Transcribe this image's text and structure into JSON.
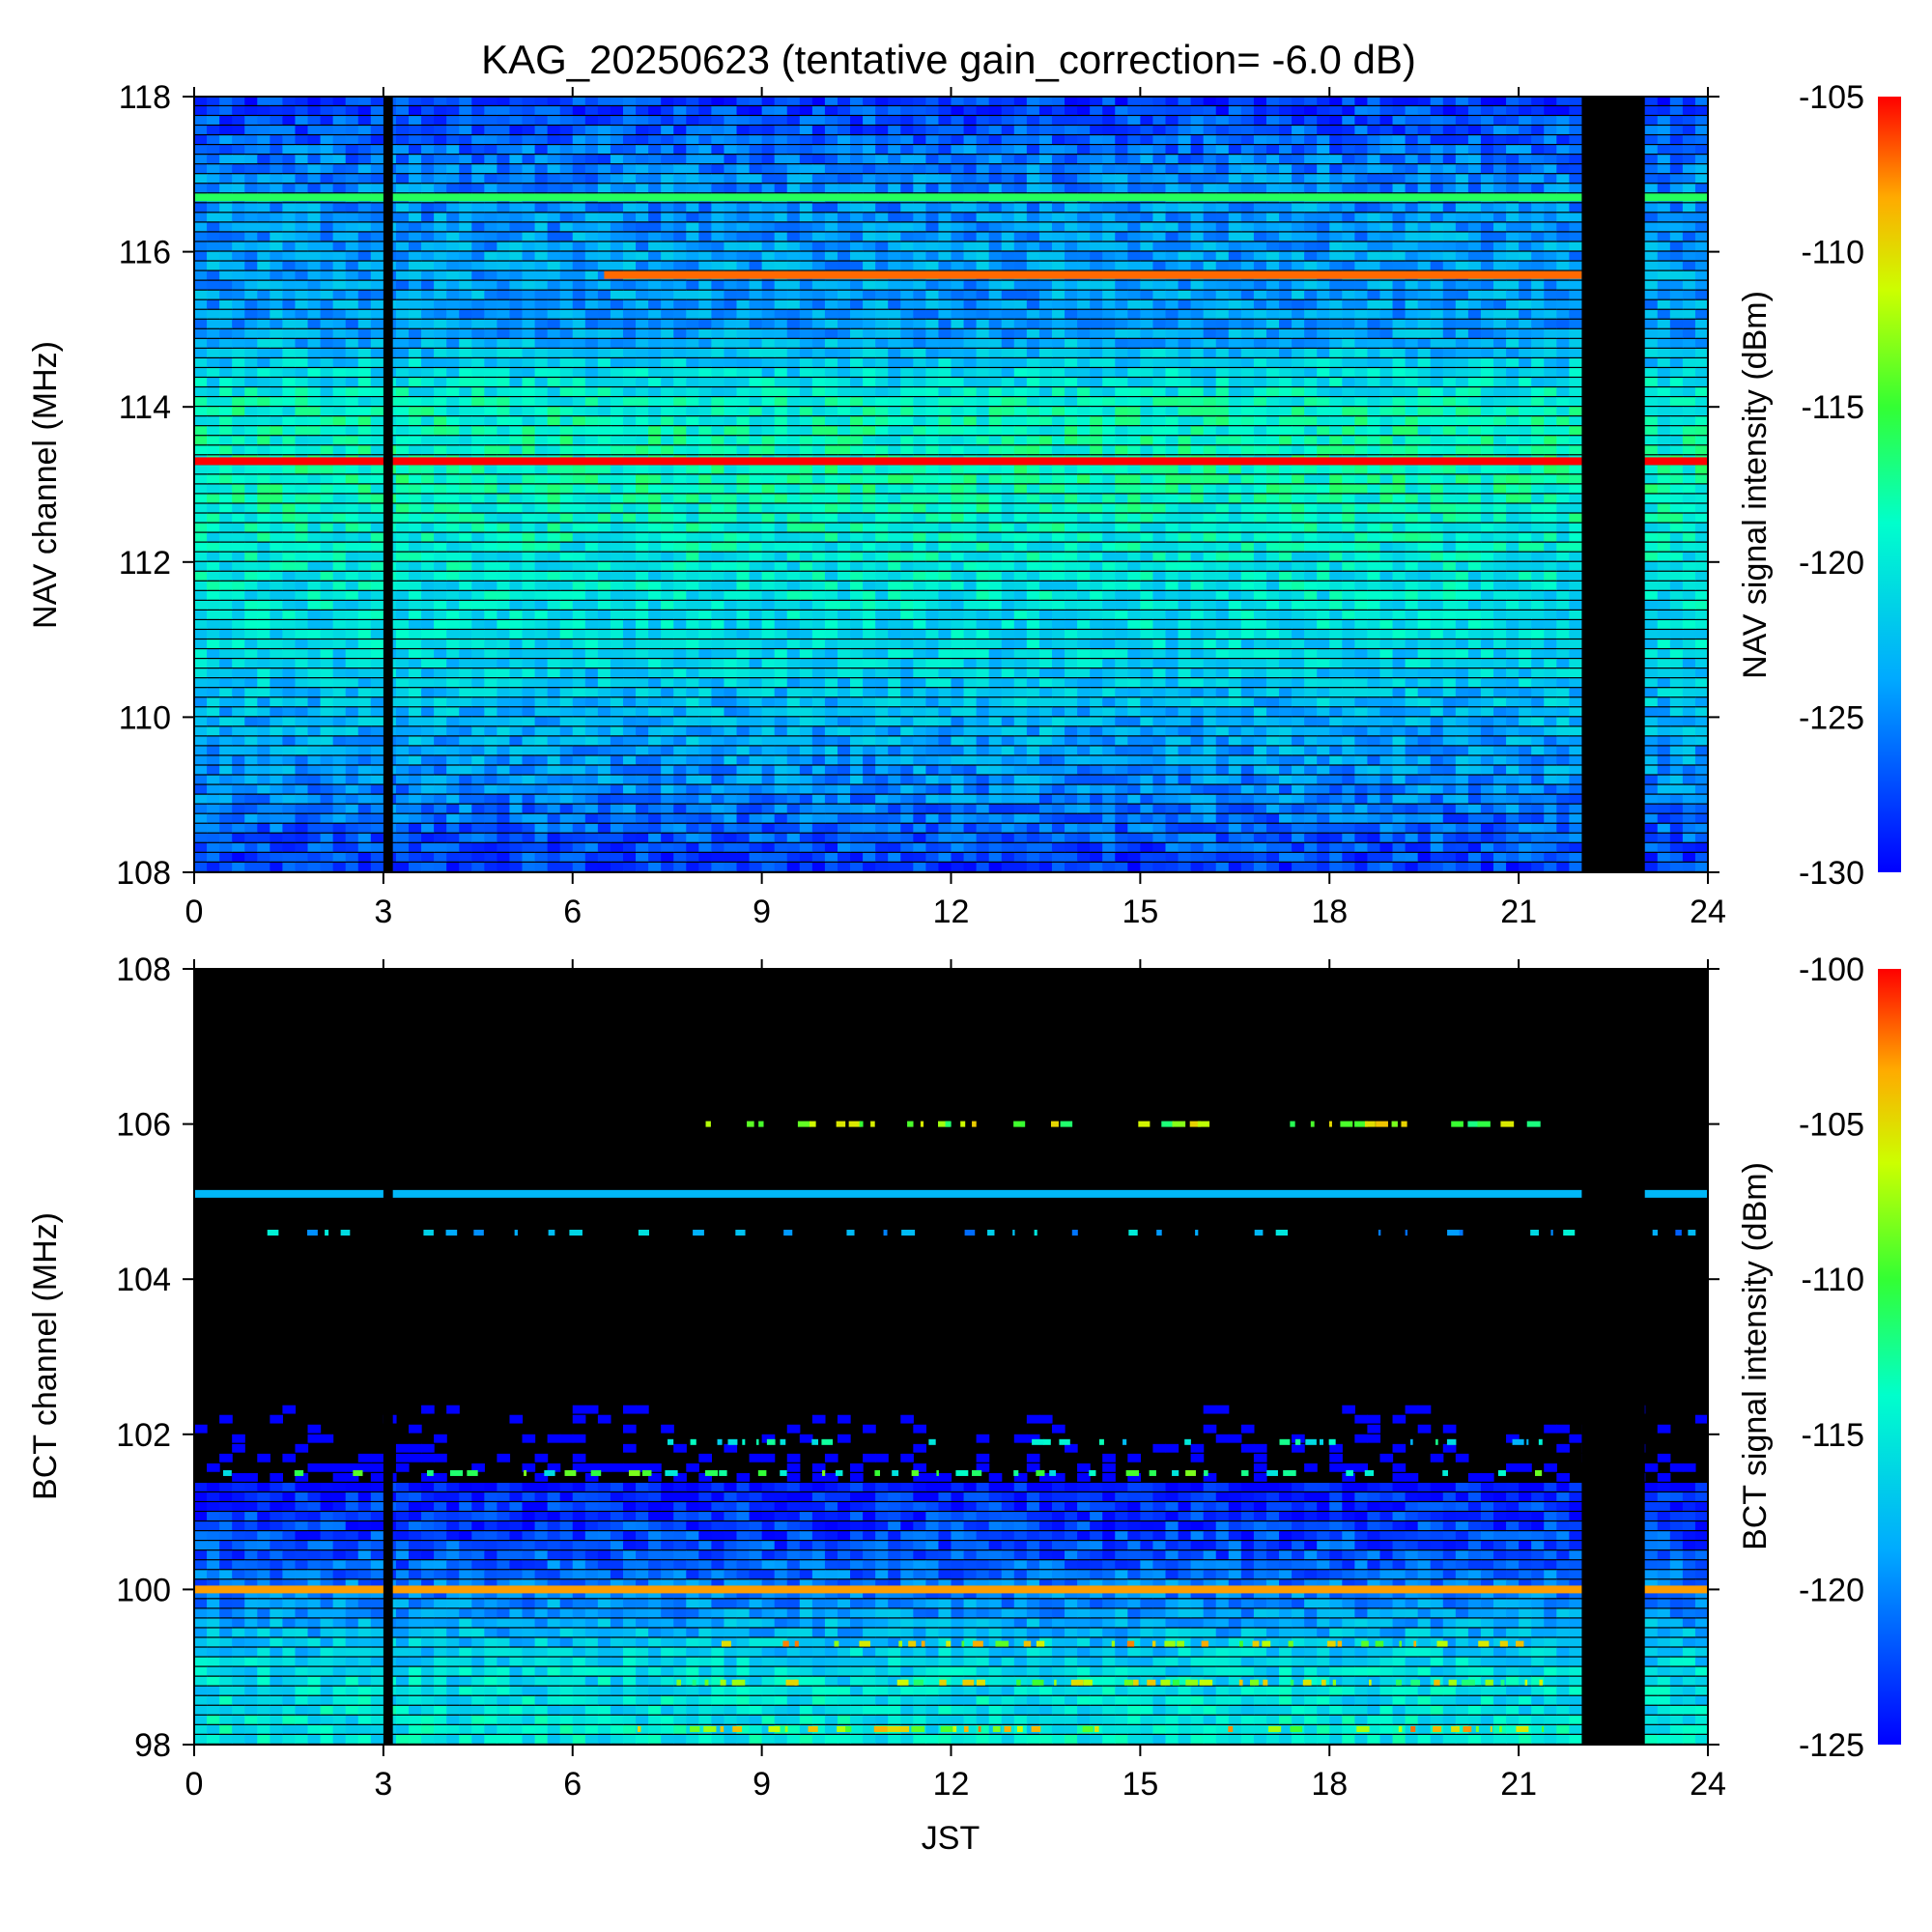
{
  "title": "KAG_20250623 (tentative gain_correction= -6.0 dB)",
  "x_label": "JST",
  "chart_data": [
    {
      "type": "heatmap",
      "name": "NAV",
      "ylabel": "NAV channel (MHz)",
      "colorbar_label": "NAV signal intensity (dBm)",
      "x_ticks": [
        "0",
        "3",
        "6",
        "9",
        "12",
        "15",
        "18",
        "21",
        "24"
      ],
      "x_tick_values": [
        0,
        3,
        6,
        9,
        12,
        15,
        18,
        21,
        24
      ],
      "xlim": [
        0,
        24
      ],
      "y_ticks": [
        "108",
        "110",
        "112",
        "114",
        "116",
        "118"
      ],
      "y_tick_values": [
        108,
        110,
        112,
        114,
        116,
        118
      ],
      "ylim": [
        108,
        118
      ],
      "colorbar_ticks": [
        "-130",
        "-125",
        "-120",
        "-115",
        "-110",
        "-105"
      ],
      "colorbar_tick_values": [
        -130,
        -125,
        -120,
        -115,
        -110,
        -105
      ],
      "clim": [
        -130,
        -105
      ],
      "no_data_intervals": [
        [
          3.0,
          3.15
        ],
        [
          22.0,
          23.0
        ]
      ],
      "strong_channels": [
        {
          "freq": 113.3,
          "level": -105,
          "from": 0,
          "to": 24
        },
        {
          "freq": 115.7,
          "level": -107,
          "from": 6.5,
          "to": 22
        },
        {
          "freq": 116.7,
          "level": -116,
          "from": 0,
          "to": 24
        }
      ],
      "background_profile": [
        [
          108.0,
          -128
        ],
        [
          109.0,
          -125
        ],
        [
          110.0,
          -123
        ],
        [
          111.0,
          -121
        ],
        [
          112.0,
          -120
        ],
        [
          113.0,
          -118.5
        ],
        [
          114.0,
          -119
        ],
        [
          115.0,
          -124
        ],
        [
          116.0,
          -124
        ],
        [
          117.0,
          -125
        ],
        [
          118.0,
          -128
        ]
      ]
    },
    {
      "type": "heatmap",
      "name": "BCT",
      "ylabel": "BCT channel (MHz)",
      "colorbar_label": "BCT signal intensity (dBm)",
      "x_ticks": [
        "0",
        "3",
        "6",
        "9",
        "12",
        "15",
        "18",
        "21",
        "24"
      ],
      "x_tick_values": [
        0,
        3,
        6,
        9,
        12,
        15,
        18,
        21,
        24
      ],
      "xlim": [
        0,
        24
      ],
      "y_ticks": [
        "98",
        "100",
        "102",
        "104",
        "106",
        "108"
      ],
      "y_tick_values": [
        98,
        100,
        102,
        104,
        106,
        108
      ],
      "ylim": [
        98,
        108
      ],
      "colorbar_ticks": [
        "-125",
        "-120",
        "-115",
        "-110",
        "-105",
        "-100"
      ],
      "colorbar_tick_values": [
        -125,
        -120,
        -115,
        -110,
        -105,
        -100
      ],
      "clim": [
        -125,
        -100
      ],
      "no_data_intervals": [
        [
          3.0,
          3.15
        ],
        [
          22.0,
          23.0
        ]
      ],
      "strong_channels": [
        {
          "freq": 100.0,
          "level": -103,
          "from": 0,
          "to": 24
        },
        {
          "freq": 105.1,
          "level": -118,
          "from": 0,
          "to": 24
        }
      ],
      "intermittent_channels": [
        {
          "freq": 106.0,
          "level": -108,
          "from": 7.5,
          "to": 21.5
        },
        {
          "freq": 104.6,
          "level": -118,
          "from": 1,
          "to": 24
        },
        {
          "freq": 101.9,
          "level": -115,
          "from": 7,
          "to": 21.5
        },
        {
          "freq": 101.5,
          "level": -112,
          "from": 0,
          "to": 21.5
        },
        {
          "freq": 99.3,
          "level": -106,
          "from": 7.5,
          "to": 21.5
        },
        {
          "freq": 98.8,
          "level": -108,
          "from": 7,
          "to": 21.5
        },
        {
          "freq": 98.2,
          "level": -106,
          "from": 7,
          "to": 21.5
        }
      ],
      "background_profile": [
        [
          98.0,
          -115
        ],
        [
          99.0,
          -116
        ],
        [
          99.9,
          -120
        ],
        [
          100.5,
          -122
        ],
        [
          101.3,
          -124
        ],
        [
          101.4,
          -128
        ],
        [
          108.0,
          -135
        ]
      ]
    }
  ]
}
